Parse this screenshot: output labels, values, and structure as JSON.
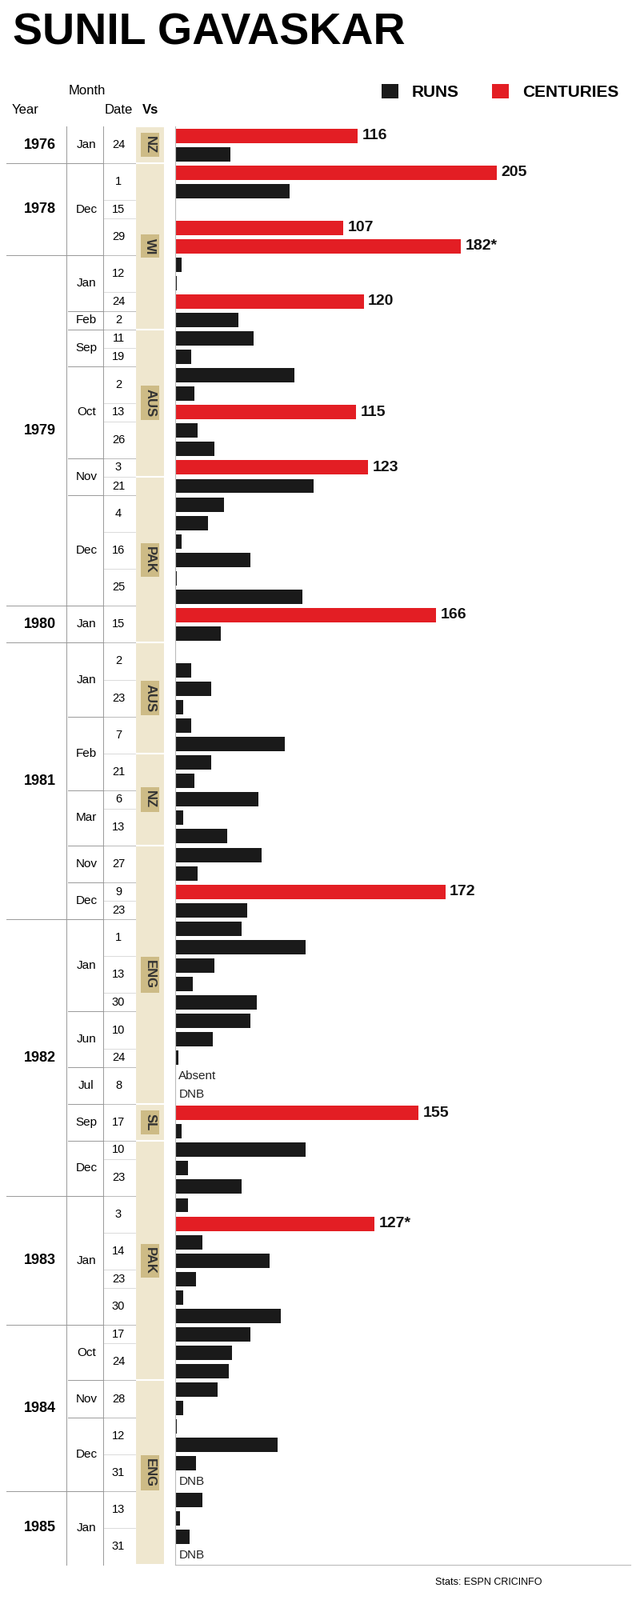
{
  "chart_data": {
    "type": "bar",
    "title": "SUNIL GAVASKAR",
    "orientation": "horizontal",
    "data_labels": true,
    "tick_labels": false,
    "grid": false,
    "legend": "upper right",
    "xlim": [
      0,
      290
    ],
    "categories": [
      null,
      null,
      null,
      null,
      null,
      null,
      null,
      null,
      null,
      null,
      null,
      null,
      null,
      null,
      null,
      null,
      null,
      null,
      null,
      null,
      null,
      null,
      null,
      null,
      null,
      null,
      null,
      null,
      null,
      null,
      null,
      null,
      null,
      null,
      null,
      null,
      null,
      null,
      null,
      null,
      null,
      null,
      null,
      null,
      null,
      null,
      null,
      null,
      null,
      null,
      null,
      null,
      null,
      null,
      null,
      null,
      null,
      null,
      null,
      null,
      null,
      null,
      null,
      null,
      null,
      null,
      null,
      null,
      null,
      null,
      null,
      null,
      null,
      null,
      null,
      null,
      null,
      null
    ],
    "series": [
      {
        "name": "RUNS",
        "color": "#1a1a1a",
        "values": [
          null,
          35,
          null,
          73,
          0,
          null,
          null,
          4,
          1,
          null,
          40,
          50,
          10,
          76,
          12,
          null,
          14,
          25,
          null,
          88,
          31,
          21,
          4,
          48,
          1,
          81,
          null,
          29,
          0,
          10,
          23,
          5,
          10,
          70,
          23,
          12,
          53,
          5,
          33,
          55,
          14,
          null,
          46,
          42,
          83,
          25,
          11,
          52,
          48,
          24,
          2,
          null,
          null,
          null,
          4,
          83,
          8,
          42,
          8,
          null,
          17,
          60,
          13,
          5,
          67,
          48,
          36,
          34,
          27,
          5,
          1,
          65,
          13,
          null,
          17,
          3,
          9,
          null
        ],
        "value_labels": [
          null,
          null,
          null,
          null,
          null,
          null,
          null,
          null,
          null,
          null,
          null,
          null,
          null,
          null,
          null,
          null,
          null,
          null,
          null,
          null,
          null,
          null,
          null,
          null,
          null,
          null,
          null,
          null,
          null,
          null,
          null,
          null,
          null,
          null,
          null,
          null,
          null,
          null,
          null,
          null,
          null,
          null,
          null,
          null,
          null,
          null,
          null,
          null,
          null,
          null,
          null,
          "Absent",
          "DNB",
          null,
          null,
          null,
          null,
          null,
          null,
          null,
          null,
          null,
          null,
          null,
          null,
          null,
          null,
          null,
          null,
          null,
          null,
          null,
          null,
          "DNB",
          null,
          null,
          null,
          "DNB"
        ]
      },
      {
        "name": "CENTURIES",
        "color": "#e31e24",
        "values": [
          116,
          null,
          205,
          null,
          null,
          107,
          182,
          null,
          null,
          120,
          null,
          null,
          null,
          null,
          null,
          115,
          null,
          null,
          123,
          null,
          null,
          null,
          null,
          null,
          null,
          null,
          166,
          null,
          null,
          null,
          null,
          null,
          null,
          null,
          null,
          null,
          null,
          null,
          null,
          null,
          null,
          172,
          null,
          null,
          null,
          null,
          null,
          null,
          null,
          null,
          null,
          null,
          null,
          155,
          null,
          null,
          null,
          null,
          null,
          127,
          null,
          null,
          null,
          null,
          null,
          null,
          null,
          null,
          null,
          null,
          null,
          null,
          null,
          null,
          null,
          null,
          null,
          null
        ],
        "value_labels": [
          "116",
          null,
          "205",
          null,
          null,
          "107",
          "182*",
          null,
          null,
          "120",
          null,
          null,
          null,
          null,
          null,
          "115",
          null,
          null,
          "123",
          null,
          null,
          null,
          null,
          null,
          null,
          null,
          "166",
          null,
          null,
          null,
          null,
          null,
          null,
          null,
          null,
          null,
          null,
          null,
          null,
          null,
          null,
          "172",
          null,
          null,
          null,
          null,
          null,
          null,
          null,
          null,
          null,
          null,
          null,
          "155",
          null,
          null,
          null,
          null,
          null,
          "127*",
          null,
          null,
          null,
          null,
          null,
          null,
          null,
          null,
          null,
          null,
          null,
          null,
          null,
          null,
          null,
          null,
          null,
          null
        ]
      }
    ],
    "row_groups": {
      "headers": {
        "year": "Year",
        "month": "Month",
        "date": "Date",
        "vs": "Vs"
      },
      "years": [
        {
          "label": "1976",
          "rows": 2
        },
        {
          "label": "1978",
          "rows": 5
        },
        {
          "label": "1979",
          "rows": 19
        },
        {
          "label": "1980",
          "rows": 2
        },
        {
          "label": "1981",
          "rows": 15
        },
        {
          "label": "1982",
          "rows": 15
        },
        {
          "label": "1983",
          "rows": 7
        },
        {
          "label": "1984",
          "rows": 9
        },
        {
          "label": "1985",
          "rows": 4
        }
      ],
      "months": [
        {
          "label": "Jan",
          "rows": 2
        },
        {
          "label": "Dec",
          "rows": 5
        },
        {
          "label": "Jan",
          "rows": 3
        },
        {
          "label": "Feb",
          "rows": 1
        },
        {
          "label": "Sep",
          "rows": 2
        },
        {
          "label": "Oct",
          "rows": 5
        },
        {
          "label": "Nov",
          "rows": 2
        },
        {
          "label": "Dec",
          "rows": 6
        },
        {
          "label": "Jan",
          "rows": 2
        },
        {
          "label": "Jan",
          "rows": 4
        },
        {
          "label": "Feb",
          "rows": 4
        },
        {
          "label": "Mar",
          "rows": 3
        },
        {
          "label": "Nov",
          "rows": 2
        },
        {
          "label": "Dec",
          "rows": 2
        },
        {
          "label": "Jan",
          "rows": 5
        },
        {
          "label": "Jun",
          "rows": 3
        },
        {
          "label": "Jul",
          "rows": 2
        },
        {
          "label": "Sep",
          "rows": 2
        },
        {
          "label": "Dec",
          "rows": 3
        },
        {
          "label": "Jan",
          "rows": 7
        },
        {
          "label": "Oct",
          "rows": 3
        },
        {
          "label": "Nov",
          "rows": 2
        },
        {
          "label": "Dec",
          "rows": 4
        },
        {
          "label": "Jan",
          "rows": 4
        }
      ],
      "dates": [
        {
          "label": "24",
          "rows": 2
        },
        {
          "label": "1",
          "rows": 2
        },
        {
          "label": "15",
          "rows": 1
        },
        {
          "label": "29",
          "rows": 2
        },
        {
          "label": "12",
          "rows": 2
        },
        {
          "label": "24",
          "rows": 1
        },
        {
          "label": "2",
          "rows": 1
        },
        {
          "label": "11",
          "rows": 1
        },
        {
          "label": "19",
          "rows": 1
        },
        {
          "label": "2",
          "rows": 2
        },
        {
          "label": "13",
          "rows": 1
        },
        {
          "label": "26",
          "rows": 2
        },
        {
          "label": "3",
          "rows": 1
        },
        {
          "label": "21",
          "rows": 1
        },
        {
          "label": "4",
          "rows": 2
        },
        {
          "label": "16",
          "rows": 2
        },
        {
          "label": "25",
          "rows": 2
        },
        {
          "label": "15",
          "rows": 2
        },
        {
          "label": "2",
          "rows": 2
        },
        {
          "label": "23",
          "rows": 2
        },
        {
          "label": "7",
          "rows": 2
        },
        {
          "label": "21",
          "rows": 2
        },
        {
          "label": "6",
          "rows": 1
        },
        {
          "label": "13",
          "rows": 2
        },
        {
          "label": "27",
          "rows": 2
        },
        {
          "label": "9",
          "rows": 1
        },
        {
          "label": "23",
          "rows": 1
        },
        {
          "label": "1",
          "rows": 2
        },
        {
          "label": "13",
          "rows": 2
        },
        {
          "label": "30",
          "rows": 1
        },
        {
          "label": "10",
          "rows": 2
        },
        {
          "label": "24",
          "rows": 1
        },
        {
          "label": "8",
          "rows": 2
        },
        {
          "label": "17",
          "rows": 2
        },
        {
          "label": "10",
          "rows": 1
        },
        {
          "label": "23",
          "rows": 2
        },
        {
          "label": "3",
          "rows": 2
        },
        {
          "label": "14",
          "rows": 2
        },
        {
          "label": "23",
          "rows": 1
        },
        {
          "label": "30",
          "rows": 2
        },
        {
          "label": "17",
          "rows": 1
        },
        {
          "label": "24",
          "rows": 2
        },
        {
          "label": "28",
          "rows": 2
        },
        {
          "label": "12",
          "rows": 2
        },
        {
          "label": "31",
          "rows": 2
        },
        {
          "label": "13",
          "rows": 2
        },
        {
          "label": "31",
          "rows": 2
        }
      ],
      "opponents": [
        {
          "label": "NZ",
          "rows": 2
        },
        {
          "label": "WI",
          "rows": 9
        },
        {
          "label": "AUS",
          "rows": 8
        },
        {
          "label": "PAK",
          "rows": 9
        },
        {
          "label": "AUS",
          "rows": 6
        },
        {
          "label": "NZ",
          "rows": 5
        },
        {
          "label": "ENG",
          "rows": 14
        },
        {
          "label": "SL",
          "rows": 2
        },
        {
          "label": "PAK",
          "rows": 13
        },
        {
          "label": "ENG",
          "rows": 10
        }
      ]
    },
    "source": "Stats: ESPN CRICINFO"
  }
}
